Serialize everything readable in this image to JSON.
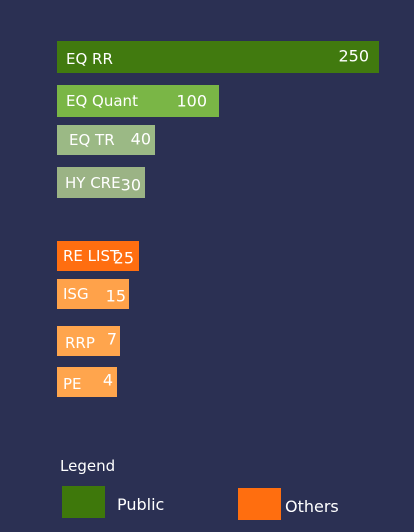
{
  "chart_data": {
    "type": "bar",
    "orientation": "horizontal",
    "categories": [
      "EQ RR",
      "EQ Quant",
      "EQ TR",
      "HY CRE",
      "RE LIST",
      "ISG",
      "RRP",
      "PE"
    ],
    "values": [
      250,
      100,
      40,
      30,
      25,
      15,
      7,
      4
    ],
    "value_labels": [
      "250",
      "100",
      "40",
      "30",
      "25",
      "15",
      "7",
      "4"
    ],
    "groups": [
      "Public",
      "Public",
      "Public",
      "Public",
      "Others",
      "Others",
      "Others",
      "Others"
    ],
    "bar_colors": [
      "#417a0f",
      "#7ab646",
      "#9bb985",
      "#9bb385",
      "#ff6e10",
      "#ffa24a",
      "#ffa54d",
      "#ffa54d"
    ],
    "title": "",
    "xlabel": "",
    "ylabel": "",
    "grid": false
  },
  "legend": {
    "title": "Legend",
    "items": [
      {
        "label": "Public",
        "color": "#3e780b"
      },
      {
        "label": "Others",
        "color": "#ff6e0f"
      }
    ]
  }
}
